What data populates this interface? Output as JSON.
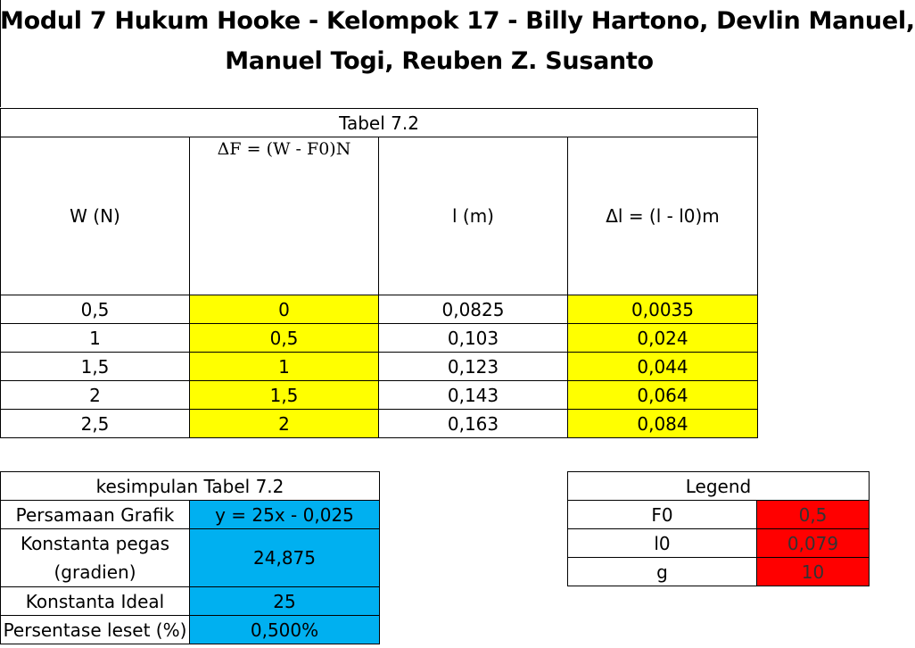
{
  "title": {
    "line1": "Modul 7 Hukum Hooke - Kelompok 17 - Billy Hartono, Devlin Manuel,",
    "line2": "Manuel Togi, Reuben Z. Susanto"
  },
  "main_table": {
    "caption": "Tabel 7.2",
    "headers": {
      "w": "W (N)",
      "deltaF": "ΔF = (W - F0)N",
      "l": "l (m)",
      "deltaL": "Δl = (l - l0)m"
    },
    "rows": [
      {
        "w": "0,5",
        "deltaF": "0",
        "l": "0,0825",
        "deltaL": "0,0035"
      },
      {
        "w": "1",
        "deltaF": "0,5",
        "l": "0,103",
        "deltaL": "0,024"
      },
      {
        "w": "1,5",
        "deltaF": "1",
        "l": "0,123",
        "deltaL": "0,044"
      },
      {
        "w": "2",
        "deltaF": "1,5",
        "l": "0,143",
        "deltaL": "0,064"
      },
      {
        "w": "2,5",
        "deltaF": "2",
        "l": "0,163",
        "deltaL": "0,084"
      }
    ]
  },
  "conclusion": {
    "caption": "kesimpulan Tabel 7.2",
    "rows": [
      {
        "label": "Persamaan Grafik",
        "value": "y = 25x - 0,025"
      },
      {
        "label": "Konstanta pegas (gradien)",
        "value": "24,875"
      },
      {
        "label": "Konstanta Ideal",
        "value": "25"
      },
      {
        "label": "Persentase leset (%)",
        "value": "0,500%"
      }
    ]
  },
  "legend": {
    "caption": "Legend",
    "rows": [
      {
        "label": "F0",
        "value": "0,5"
      },
      {
        "label": "l0",
        "value": "0,079"
      },
      {
        "label": "g",
        "value": "10"
      }
    ]
  },
  "colors": {
    "highlight_yellow": "#ffff00",
    "highlight_blue": "#00b0f0",
    "highlight_red": "#ff0000"
  }
}
